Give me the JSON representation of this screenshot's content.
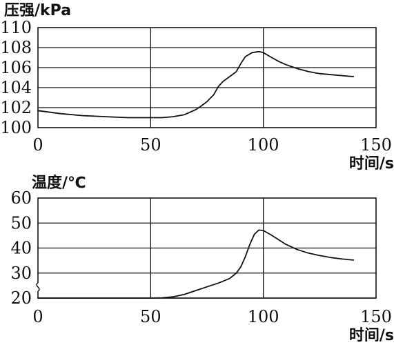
{
  "chart_data": [
    {
      "type": "line",
      "ylabel": "压强/kPa",
      "xlabel": "时间/s",
      "xlim": [
        0,
        150
      ],
      "ylim": [
        100,
        110
      ],
      "x_ticks": [
        "0",
        "50",
        "100",
        "150"
      ],
      "y_ticks": [
        "100",
        "102",
        "104",
        "106",
        "108",
        "110"
      ],
      "grid": true,
      "series": [
        {
          "x": [
            0,
            10,
            20,
            30,
            40,
            50,
            55,
            60,
            65,
            70,
            72,
            75,
            78,
            80,
            82,
            85,
            88,
            90,
            92,
            95,
            98,
            100,
            103,
            107,
            110,
            115,
            120,
            125,
            130,
            135,
            140
          ],
          "y": [
            101.7,
            101.4,
            101.2,
            101.1,
            101.0,
            101.0,
            101.0,
            101.1,
            101.3,
            101.8,
            102.1,
            102.6,
            103.3,
            104.1,
            104.6,
            105.1,
            105.6,
            106.4,
            107.1,
            107.5,
            107.6,
            107.5,
            107.1,
            106.6,
            106.3,
            105.9,
            105.6,
            105.4,
            105.3,
            105.2,
            105.1
          ]
        }
      ]
    },
    {
      "type": "line",
      "ylabel": "温度/℃",
      "xlabel": "时间/s",
      "xlim": [
        0,
        150
      ],
      "ylim": [
        20,
        60
      ],
      "x_ticks": [
        "0",
        "50",
        "100",
        "150"
      ],
      "y_ticks": [
        "20",
        "30",
        "40",
        "50",
        "60"
      ],
      "axis_break": true,
      "grid": true,
      "series": [
        {
          "x": [
            0,
            10,
            20,
            30,
            40,
            50,
            55,
            60,
            65,
            70,
            75,
            80,
            85,
            88,
            90,
            92,
            94,
            96,
            98,
            100,
            103,
            107,
            110,
            115,
            120,
            125,
            130,
            135,
            140
          ],
          "y": [
            20,
            20,
            20,
            20,
            20,
            20,
            20.1,
            20.5,
            21.5,
            23,
            24.5,
            26,
            27.8,
            30,
            32.5,
            36.5,
            41.5,
            45.5,
            47.2,
            47,
            45.5,
            43.2,
            41.5,
            39.4,
            38,
            37,
            36.2,
            35.6,
            35.2
          ]
        }
      ]
    }
  ]
}
